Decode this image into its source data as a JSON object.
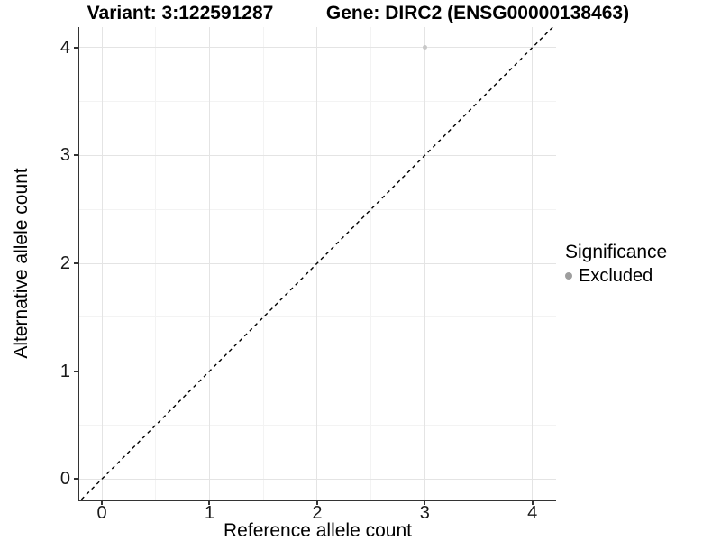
{
  "figure": {
    "title_left": "Variant: 3:122591287",
    "title_right": "Gene: DIRC2 (ENSG00000138463)"
  },
  "chart_data": {
    "type": "scatter",
    "title_left": "Variant: 3:122591287",
    "title_right": "Gene: DIRC2 (ENSG00000138463)",
    "xlabel": "Reference allele count",
    "ylabel": "Alternative allele count",
    "xlim": [
      -0.21,
      4.22
    ],
    "ylim": [
      -0.19,
      4.19
    ],
    "xticks": [
      0,
      1,
      2,
      3,
      4
    ],
    "yticks": [
      0,
      1,
      2,
      3,
      4
    ],
    "xticks_minor": [
      0.5,
      1.5,
      2.5,
      3.5
    ],
    "yticks_minor": [
      0.5,
      1.5,
      2.5,
      3.5
    ],
    "grid": "major-and-minor",
    "identity_line": {
      "equation": "y = x",
      "style": "dashed",
      "from": -0.19,
      "to": 4.19
    },
    "series": [
      {
        "name": "Excluded",
        "color": "#c8c8c8",
        "point_size": 5,
        "points": [
          {
            "x": 3,
            "y": 4
          }
        ]
      }
    ],
    "legend": {
      "title": "Significance",
      "position": "right",
      "entries": [
        {
          "label": "Excluded",
          "color": "#9e9e9e"
        }
      ]
    }
  },
  "colors": {
    "grid_major": "#e4e4e4",
    "grid_minor": "#f3f3f3",
    "axis_line": "#333333",
    "identity_line": "#000000"
  }
}
